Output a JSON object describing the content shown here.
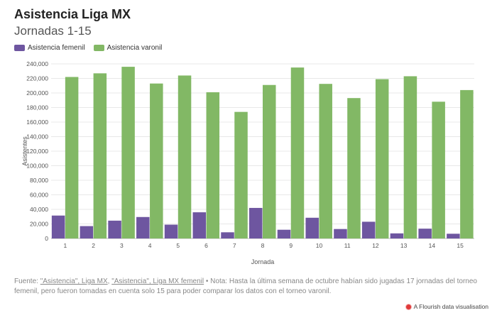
{
  "title": "Asistencia Liga MX",
  "subtitle": "Jornadas 1-15",
  "colors": {
    "femenil": "#6e56a0",
    "varonil": "#82b865",
    "grid": "#e8e8e8",
    "axis": "#bbbbbb",
    "tick_text": "#555555"
  },
  "chart_data": {
    "type": "bar",
    "xlabel": "Jornada",
    "ylabel": "Asistentes",
    "ylim": [
      0,
      240000
    ],
    "yticks": [
      0,
      20000,
      40000,
      60000,
      80000,
      100000,
      120000,
      140000,
      160000,
      180000,
      200000,
      220000,
      240000
    ],
    "ytick_labels": [
      "0",
      "20,000",
      "40,000",
      "60,000",
      "80,000",
      "100,000",
      "120,000",
      "140,000",
      "160,000",
      "180,000",
      "200,000",
      "220,000",
      "240,000"
    ],
    "categories": [
      "1",
      "2",
      "3",
      "4",
      "5",
      "6",
      "7",
      "8",
      "9",
      "10",
      "11",
      "12",
      "13",
      "14",
      "15"
    ],
    "series": [
      {
        "name": "Asistencia femenil",
        "values": [
          31500,
          17000,
          24500,
          29500,
          19000,
          36000,
          8500,
          42000,
          12000,
          28500,
          13000,
          23000,
          7000,
          13500,
          6500
        ]
      },
      {
        "name": "Asistencia varonil",
        "values": [
          222000,
          227000,
          236000,
          213000,
          224000,
          201000,
          174000,
          211000,
          235000,
          212500,
          193000,
          219000,
          223000,
          188000,
          204000
        ]
      }
    ],
    "legend": "top-left",
    "grid": true
  },
  "source": {
    "prefix": "Fuente: ",
    "link1": "\"Asistencia\", Liga MX",
    "sep": ", ",
    "link2": "\"Asistencia\", Liga MX femenil",
    "note": " • Nota: Hasta la última semana de octubre habían sido jugadas 17 jornadas del torneo femenil, pero fueron tomadas en cuenta solo 15 para poder comparar los datos con el torneo varonil."
  },
  "credit": "A Flourish data visualisation"
}
